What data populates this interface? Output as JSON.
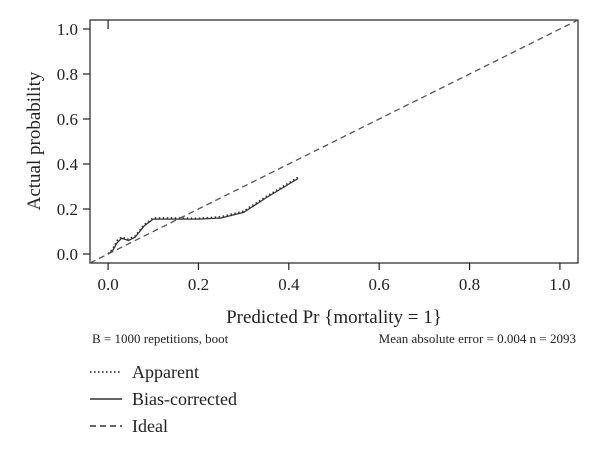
{
  "chart_data": {
    "type": "line",
    "xlabel": "Predicted Pr {mortality = 1}",
    "ylabel": "Actual probability",
    "xlim": [
      -0.04,
      1.04
    ],
    "ylim": [
      -0.04,
      1.04
    ],
    "x_ticks": [
      "0.0",
      "0.2",
      "0.4",
      "0.6",
      "0.8",
      "1.0"
    ],
    "y_ticks": [
      "0.0",
      "0.2",
      "0.4",
      "0.6",
      "0.8",
      "1.0"
    ],
    "grid": false,
    "legend_position": "bottom-left",
    "footnote_left": "B = 1000 repetitions, boot",
    "footnote_right": "Mean absolute error = 0.004 n = 2093",
    "series": [
      {
        "name": "Apparent",
        "style": "dotted",
        "color": "#333333",
        "x": [
          0.0,
          0.01,
          0.02,
          0.03,
          0.045,
          0.06,
          0.08,
          0.1,
          0.14,
          0.2,
          0.25,
          0.3,
          0.35,
          0.42
        ],
        "y": [
          0.0,
          0.02,
          0.06,
          0.075,
          0.065,
          0.08,
          0.13,
          0.16,
          0.16,
          0.158,
          0.165,
          0.19,
          0.255,
          0.34
        ]
      },
      {
        "name": "Bias-corrected",
        "style": "solid",
        "color": "#333333",
        "x": [
          0.0,
          0.01,
          0.02,
          0.03,
          0.045,
          0.06,
          0.08,
          0.1,
          0.14,
          0.2,
          0.25,
          0.3,
          0.35,
          0.42
        ],
        "y": [
          0.0,
          0.015,
          0.05,
          0.07,
          0.06,
          0.075,
          0.125,
          0.155,
          0.155,
          0.155,
          0.16,
          0.185,
          0.25,
          0.335
        ]
      },
      {
        "name": "Ideal",
        "style": "dashed",
        "color": "#555555",
        "x": [
          -0.04,
          1.04
        ],
        "y": [
          -0.04,
          1.04
        ]
      }
    ],
    "rug": [
      {
        "x": 0.0,
        "y": 1.04,
        "height": 0.04
      }
    ]
  },
  "legend": [
    {
      "label": "Apparent",
      "style": "dotted"
    },
    {
      "label": "Bias-corrected",
      "style": "solid"
    },
    {
      "label": "Ideal",
      "style": "dashed"
    }
  ]
}
